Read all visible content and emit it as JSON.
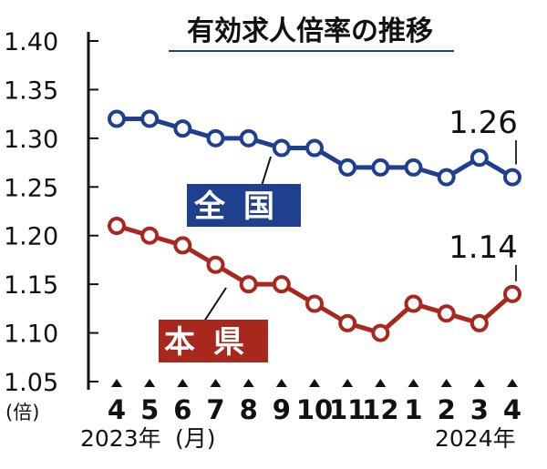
{
  "chart_data": {
    "type": "line",
    "title": "有効求人倍率の推移",
    "y_unit": "(倍)",
    "x_unit": "(月)",
    "year_start_label": "2023年",
    "year_end_label": "2024年",
    "categories": [
      "4",
      "5",
      "6",
      "7",
      "8",
      "9",
      "10",
      "11",
      "12",
      "1",
      "2",
      "3",
      "4"
    ],
    "y_ticks": [
      "1.40",
      "1.35",
      "1.30",
      "1.25",
      "1.20",
      "1.15",
      "1.10",
      "1.05"
    ],
    "ylim": [
      1.05,
      1.4
    ],
    "grid": false,
    "series": [
      {
        "name": "全国",
        "color": "#1f3f8f",
        "values": [
          1.32,
          1.32,
          1.31,
          1.3,
          1.3,
          1.29,
          1.29,
          1.27,
          1.27,
          1.27,
          1.26,
          1.28,
          1.26
        ],
        "callout": "1.26"
      },
      {
        "name": "本県",
        "color": "#a8281e",
        "values": [
          1.21,
          1.2,
          1.19,
          1.17,
          1.15,
          1.15,
          1.13,
          1.11,
          1.1,
          1.13,
          1.12,
          1.11,
          1.14
        ],
        "callout": "1.14"
      }
    ]
  }
}
